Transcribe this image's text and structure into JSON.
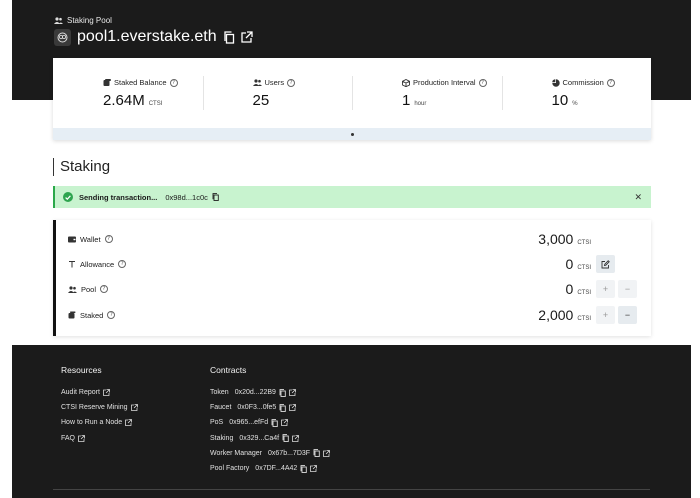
{
  "header": {
    "section_label": "Staking Pool",
    "pool_name": "pool1.everstake.eth"
  },
  "stats": [
    {
      "label": "Staked Balance",
      "value": "2.64M",
      "unit": "CTSI",
      "icon": "coins-icon"
    },
    {
      "label": "Users",
      "value": "25",
      "unit": "",
      "icon": "users-icon"
    },
    {
      "label": "Production Interval",
      "value": "1",
      "unit": "hour",
      "icon": "cube-icon"
    },
    {
      "label": "Commission",
      "value": "10",
      "unit": "%",
      "icon": "pie-icon"
    }
  ],
  "staking": {
    "heading": "Staking",
    "toast": {
      "text": "Sending transaction...",
      "hash": "0x98d...1c0c"
    },
    "rows": [
      {
        "label": "Wallet",
        "value": "3,000",
        "unit": "CTSI"
      },
      {
        "label": "Allowance",
        "value": "0",
        "unit": "CTSI"
      },
      {
        "label": "Pool",
        "value": "0",
        "unit": "CTSI"
      },
      {
        "label": "Staked",
        "value": "2,000",
        "unit": "CTSI"
      }
    ],
    "buttons": {
      "plus": "+",
      "minus": "−"
    }
  },
  "footer": {
    "resources_title": "Resources",
    "resources": [
      "Audit Report",
      "CTSI Reserve Mining",
      "How to Run a Node",
      "FAQ"
    ],
    "contracts_title": "Contracts",
    "contracts": [
      {
        "name": "Token",
        "address": "0x20d...22B9"
      },
      {
        "name": "Faucet",
        "address": "0x0F3...0fe5"
      },
      {
        "name": "PoS",
        "address": "0x965...efFd"
      },
      {
        "name": "Staking",
        "address": "0x329...Ca4f"
      },
      {
        "name": "Worker Manager",
        "address": "0x67b...7D3F"
      },
      {
        "name": "Pool Factory",
        "address": "0x7DF...4A42"
      }
    ]
  },
  "colors": {
    "dark": "#1b1b1b",
    "success_bg": "#c8f3cf",
    "success": "#2ea44f",
    "panel": "#e6eef5"
  }
}
